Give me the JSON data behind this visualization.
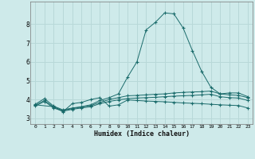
{
  "xlabel": "Humidex (Indice chaleur)",
  "bg_color": "#ceeaea",
  "grid_color": "#b8d8d8",
  "line_color": "#1a6b6b",
  "xlim": [
    -0.5,
    23.5
  ],
  "ylim": [
    2.7,
    9.2
  ],
  "xticks": [
    0,
    1,
    2,
    3,
    4,
    5,
    6,
    7,
    8,
    9,
    10,
    11,
    12,
    13,
    14,
    15,
    16,
    17,
    18,
    19,
    20,
    21,
    22,
    23
  ],
  "yticks": [
    3,
    4,
    5,
    6,
    7,
    8
  ],
  "series": [
    {
      "x": [
        0,
        1,
        2,
        3,
        4,
        5,
        6,
        7,
        8,
        9,
        10,
        11,
        12,
        13,
        14,
        15,
        16,
        17,
        18,
        19,
        20,
        21,
        22,
        23
      ],
      "y": [
        3.75,
        4.05,
        3.65,
        3.45,
        3.55,
        3.62,
        3.72,
        3.95,
        4.1,
        4.3,
        5.2,
        6.0,
        7.7,
        8.1,
        8.6,
        8.55,
        7.8,
        6.6,
        5.5,
        4.65,
        4.3,
        4.35,
        4.35,
        4.15
      ]
    },
    {
      "x": [
        0,
        1,
        2,
        3,
        4,
        5,
        6,
        7,
        8,
        9,
        10,
        11,
        12,
        13,
        14,
        15,
        16,
        17,
        18,
        19,
        20,
        21,
        22,
        23
      ],
      "y": [
        3.7,
        3.95,
        3.6,
        3.42,
        3.52,
        3.6,
        3.68,
        3.85,
        4.0,
        4.1,
        4.2,
        4.22,
        4.25,
        4.28,
        4.3,
        4.35,
        4.38,
        4.4,
        4.42,
        4.45,
        4.3,
        4.25,
        4.22,
        4.1
      ]
    },
    {
      "x": [
        0,
        1,
        2,
        3,
        4,
        5,
        6,
        7,
        8,
        9,
        10,
        11,
        12,
        13,
        14,
        15,
        16,
        17,
        18,
        19,
        20,
        21,
        22,
        23
      ],
      "y": [
        3.65,
        3.9,
        3.55,
        3.38,
        3.48,
        3.55,
        3.62,
        3.78,
        3.9,
        3.98,
        4.05,
        4.08,
        4.1,
        4.12,
        4.15,
        4.18,
        4.2,
        4.22,
        4.25,
        4.28,
        4.15,
        4.1,
        4.08,
        3.95
      ]
    },
    {
      "x": [
        0,
        2,
        3,
        4,
        5,
        6,
        7,
        8,
        9,
        10,
        11,
        12,
        13,
        14,
        15,
        16,
        17,
        18,
        19,
        20,
        21,
        22,
        23
      ],
      "y": [
        3.72,
        3.62,
        3.35,
        3.78,
        3.85,
        4.0,
        4.1,
        3.65,
        3.72,
        3.98,
        3.95,
        3.92,
        3.9,
        3.88,
        3.85,
        3.82,
        3.8,
        3.78,
        3.75,
        3.72,
        3.7,
        3.68,
        3.55
      ]
    }
  ]
}
